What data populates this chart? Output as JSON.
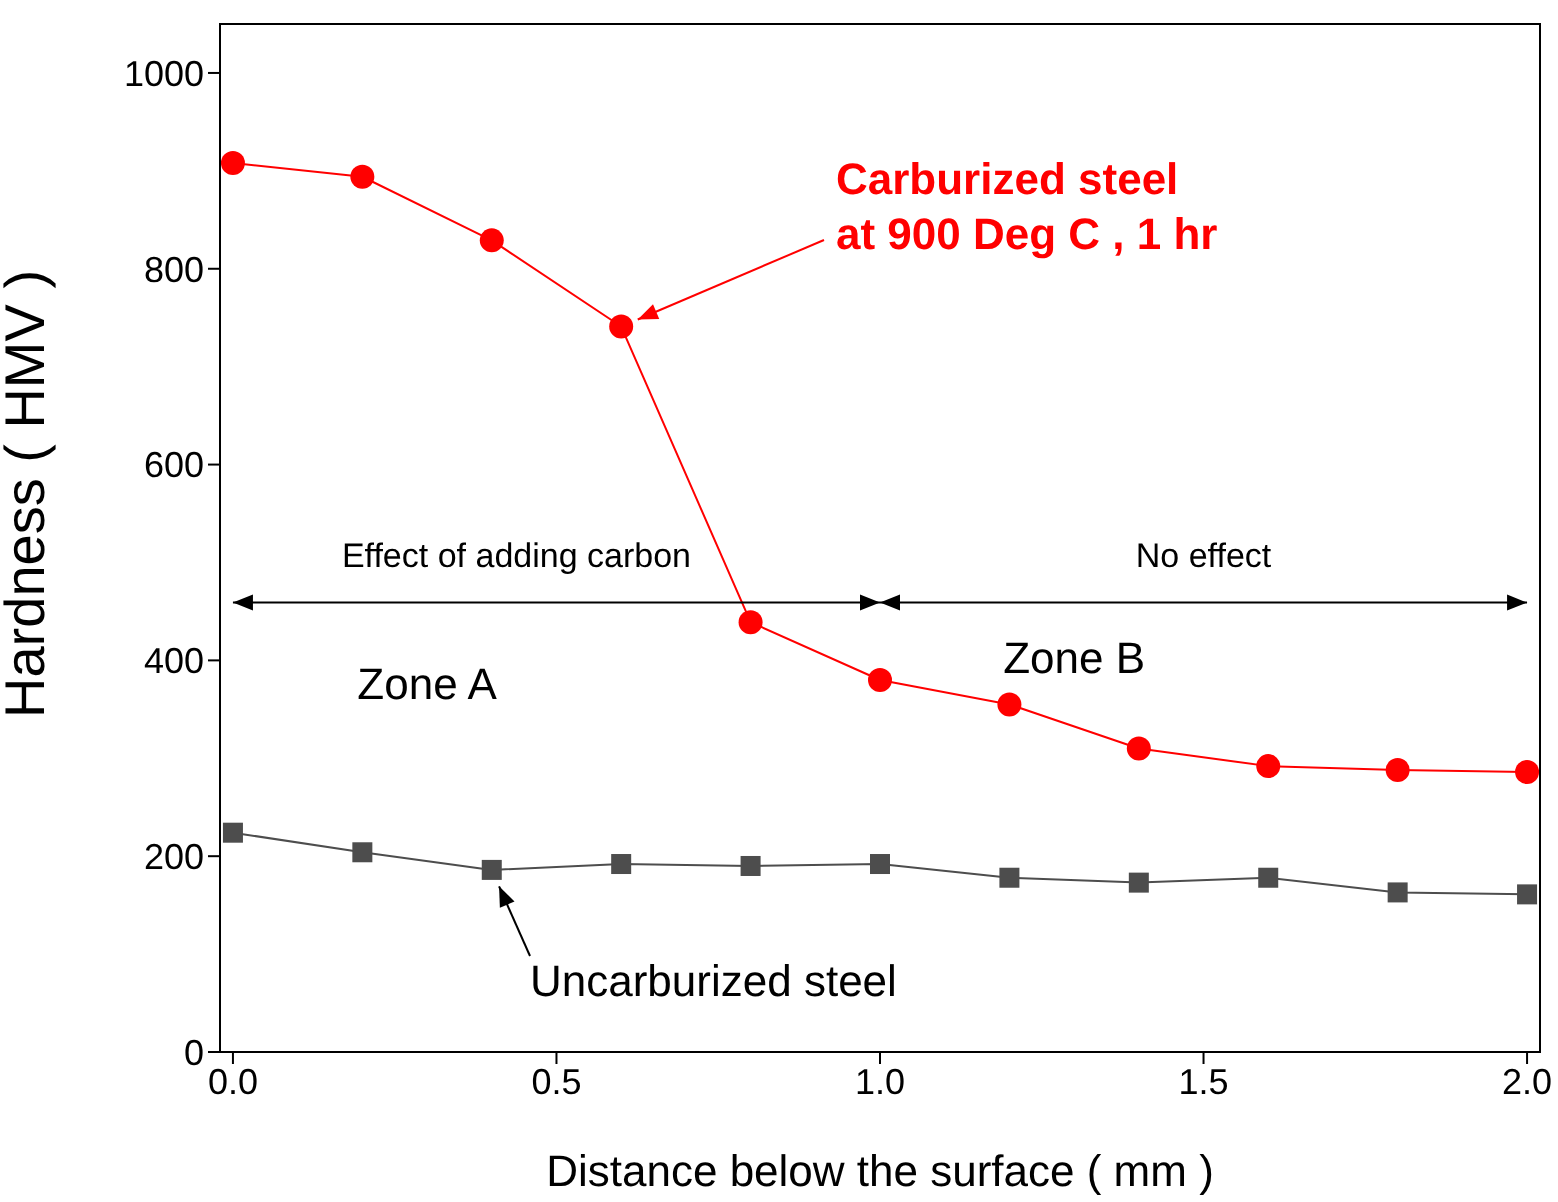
{
  "chart_data": {
    "type": "line",
    "xlabel": "Distance below the surface ( mm )",
    "ylabel": "Hardness ( HMV )",
    "x": [
      0,
      0.2,
      0.4,
      0.6,
      0.8,
      1.0,
      1.2,
      1.4,
      1.6,
      1.8,
      2.0
    ],
    "series": [
      {
        "color": "#ff0000",
        "marker": "circle",
        "values": [
          908,
          894,
          829,
          741,
          439,
          380,
          355,
          310,
          292,
          288,
          286
        ]
      },
      {
        "color": "#4d4d4d",
        "marker": "square",
        "values": [
          224,
          204,
          186,
          192,
          190,
          192,
          178,
          173,
          178,
          163,
          161
        ]
      }
    ],
    "xlim": [
      -0.02,
      2.02
    ],
    "ylim": [
      0,
      1050
    ],
    "xticks": [
      {
        "value": 0,
        "label": "0.0"
      },
      {
        "value": 0.5,
        "label": "0.5"
      },
      {
        "value": 1,
        "label": "1.0"
      },
      {
        "value": 1.5,
        "label": "1.5"
      },
      {
        "value": 2,
        "label": "2.0"
      }
    ],
    "yticks": [
      0,
      200,
      400,
      600,
      800,
      1000
    ],
    "annotations": [
      {
        "text": "Carburized steel\nat 900 Deg C , 1 hr",
        "x": 0.6,
        "y": 741
      },
      {
        "text": "Uncarburized steel",
        "x": 0.4,
        "y": 186
      },
      "Effect of adding carbon",
      "No effect",
      "Zone A",
      "Zone B"
    ]
  }
}
